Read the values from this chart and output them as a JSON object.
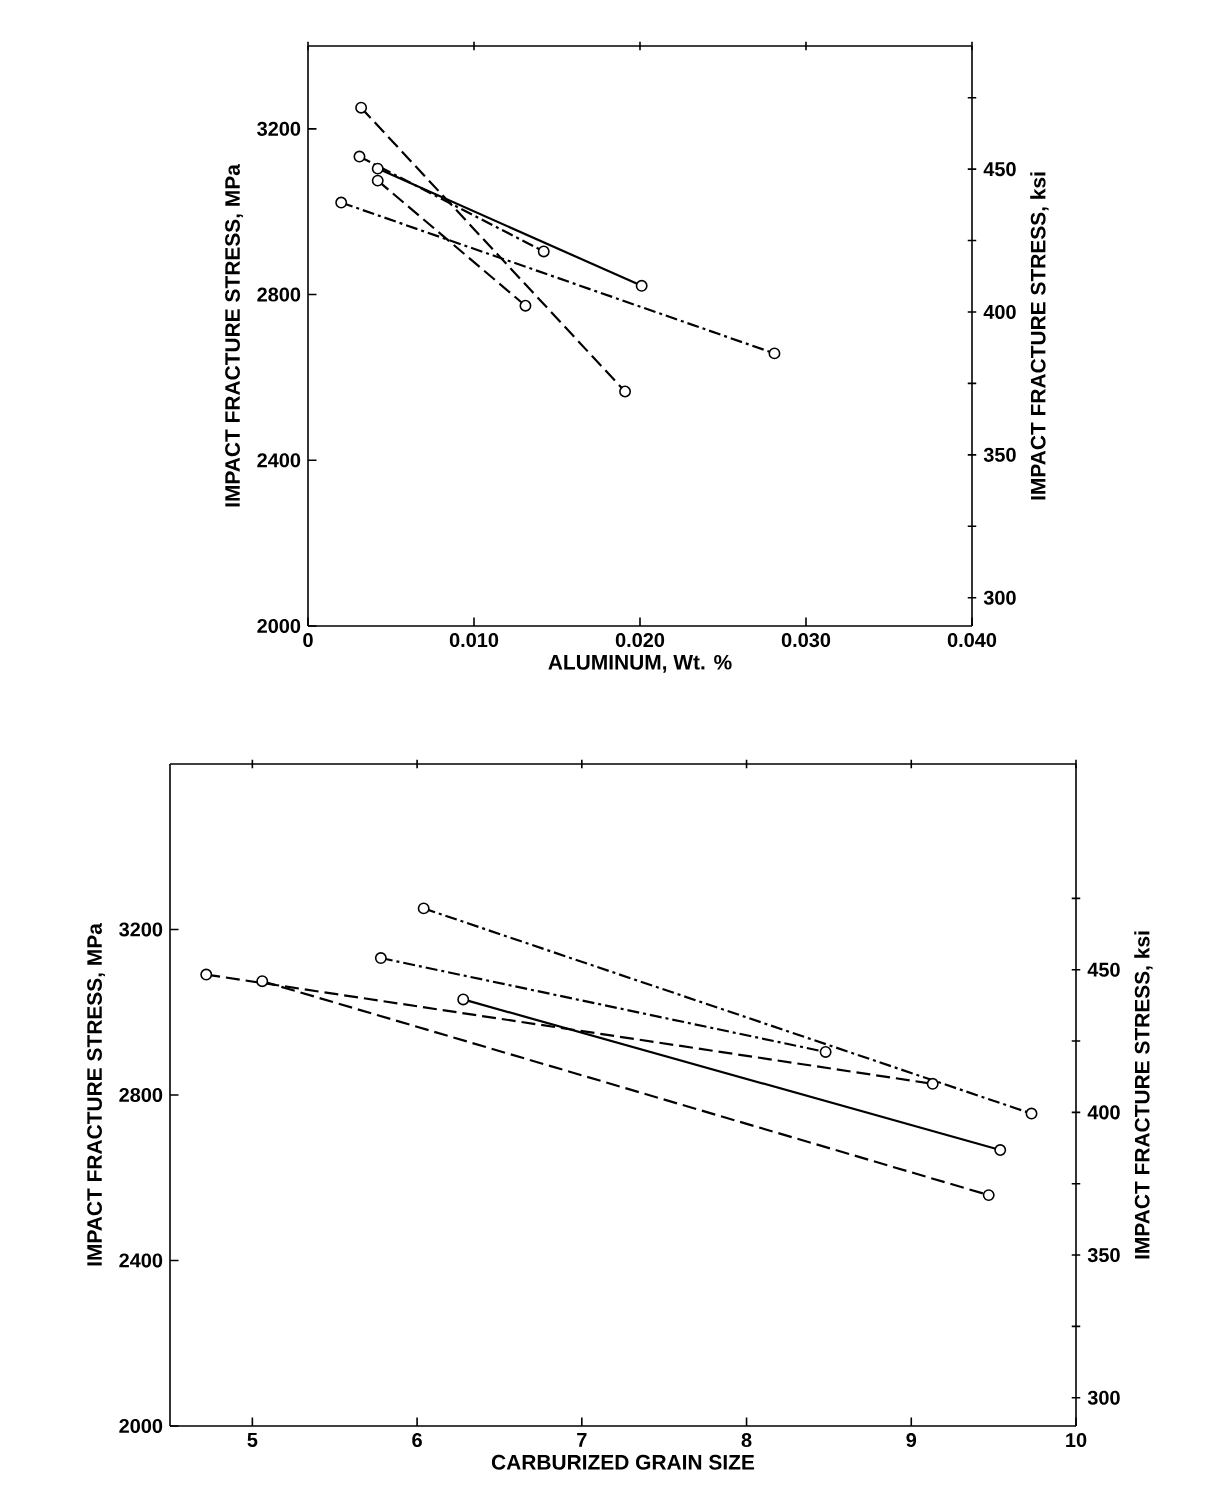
{
  "chart_data": [
    {
      "type": "line",
      "xlabel": "ALUMINUM, Wt. %",
      "ylabel": "IMPACT FRACTURE STRESS, MPa",
      "y2label": "IMPACT FRACTURE STRESS, ksi",
      "marker": "circle",
      "xlim": [
        0,
        0.04
      ],
      "xticks": [
        0,
        {
          "value": 0.01,
          "label": "0.010"
        },
        {
          "value": 0.02,
          "label": "0.020"
        },
        {
          "value": 0.03,
          "label": "0.030"
        },
        {
          "value": 0.04,
          "label": "0.040"
        }
      ],
      "ylim": [
        2000,
        3400
      ],
      "yticks": [
        2000,
        2400,
        2800,
        3200
      ],
      "y2lim": [
        290.1,
        493.1
      ],
      "y2ticks": [
        300,
        {
          "value": 325,
          "label": null
        },
        350,
        {
          "value": 375,
          "label": null
        },
        400,
        {
          "value": 425,
          "label": null
        },
        450,
        {
          "value": 475,
          "label": null
        }
      ],
      "series": [
        {
          "color": "#000000",
          "line_style": "dashed",
          "x": [
            0.0032,
            0.0191
          ],
          "values": [
            3251,
            2566
          ]
        },
        {
          "color": "#000000",
          "line_style": "solid",
          "x": [
            0.0042,
            0.0201
          ],
          "values": [
            3104,
            2821
          ]
        },
        {
          "color": "#000000",
          "line_style": "dotted",
          "x": [
            0.0031,
            0.0142
          ],
          "values": [
            3133,
            2904
          ]
        },
        {
          "color": "#000000",
          "line_style": "dotted",
          "x": [
            0.002,
            0.0281
          ],
          "values": [
            3022,
            2658
          ]
        },
        {
          "color": "#000000",
          "line_style": "dashed",
          "x": [
            0.0042,
            0.0131
          ],
          "values": [
            3075,
            2773
          ]
        }
      ]
    },
    {
      "type": "line",
      "xlabel": "CARBURIZED GRAIN SIZE",
      "ylabel": "IMPACT FRACTURE STRESS, MPa",
      "y2label": "IMPACT FRACTURE STRESS, ksi",
      "marker": "circle",
      "xlim": [
        4.5,
        10
      ],
      "xticks": [
        5,
        6,
        7,
        8,
        9,
        10
      ],
      "ylim": [
        2000,
        3600
      ],
      "yticks": [
        2000,
        2400,
        2800,
        3200
      ],
      "y2lim": [
        290.1,
        522.1
      ],
      "y2ticks": [
        300,
        {
          "value": 325,
          "label": null
        },
        350,
        {
          "value": 375,
          "label": null
        },
        400,
        {
          "value": 425,
          "label": null
        },
        450,
        {
          "value": 475,
          "label": null
        }
      ],
      "series": [
        {
          "color": "#000000",
          "line_style": "dotted",
          "x": [
            6.04,
            9.73
          ],
          "values": [
            3251,
            2755
          ]
        },
        {
          "color": "#000000",
          "line_style": "dotted",
          "x": [
            5.78,
            8.48
          ],
          "values": [
            3131,
            2904
          ]
        },
        {
          "color": "#000000",
          "line_style": "solid",
          "x": [
            6.28,
            9.54
          ],
          "values": [
            3031,
            2667
          ]
        },
        {
          "color": "#000000",
          "line_style": "dashed",
          "x": [
            5.06,
            9.47
          ],
          "values": [
            3075,
            2558
          ]
        },
        {
          "color": "#000000",
          "line_style": "dashed",
          "x": [
            4.72,
            9.13
          ],
          "values": [
            3091,
            2827
          ]
        }
      ]
    }
  ]
}
